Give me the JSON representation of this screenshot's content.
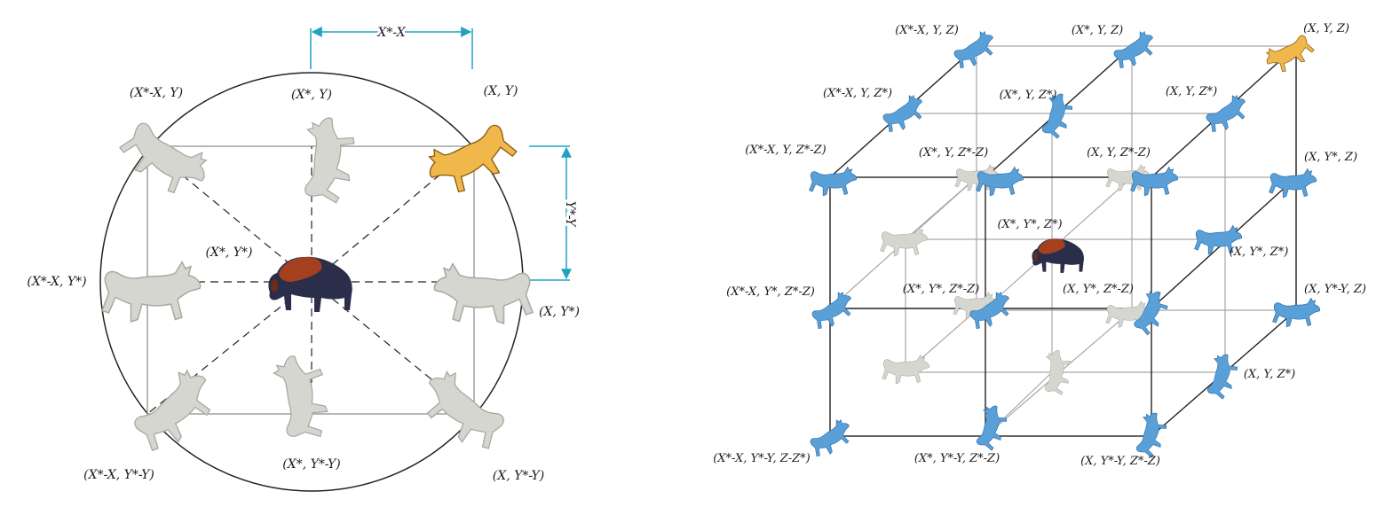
{
  "colors": {
    "wolf_grey": "#d6d6d0",
    "wolf_grey_outline": "#a9a9a2",
    "wolf_blue": "#5aa0d8",
    "wolf_blue_outline": "#2f6fa8",
    "wolf_gold": "#f0b84a",
    "bison_body": "#2a2e4a",
    "bison_hump": "#a5401f",
    "arrow_teal": "#1fa3c0",
    "line_dark": "#222222",
    "line_light": "#a8a8a8"
  },
  "left_panel": {
    "dim_x": "X*-X",
    "dim_y": "Y*-Y",
    "labels": {
      "top_left": "(X*-X, Y)",
      "top_mid": "(X*, Y)",
      "top_right": "(X, Y)",
      "center": "(X*, Y*)",
      "mid_left": "(X*-X, Y*)",
      "mid_right": "(X, Y*)",
      "bottom_left": "(X*-X, Y*-Y)",
      "bottom_mid": "(X*, Y*-Y)",
      "bottom_right": "(X, Y*-Y)"
    }
  },
  "right_panel": {
    "labels": {
      "l1": "(X*-X, Y, Z)",
      "l2": "(X*, Y, Z)",
      "l3": "(X, Y, Z)",
      "l4": "(X*-X, Y, Z*)",
      "l5": "(X*, Y, Z*)",
      "l6": "(X, Y, Z*)",
      "l7": "(X*-X, Y, Z*-Z)",
      "l8": "(X*, Y, Z*-Z)",
      "l9": "(X, Y, Z*-Z)",
      "l10": "(X, Y*, Z)",
      "l11": "(X*, Y*, Z*)",
      "l12": "(X, Y*, Z*)",
      "l13": "(X*-X, Y*, Z*-Z)",
      "l14": "(X*, Y*, Z*-Z)",
      "l15": "(X, Y*, Z*-Z)",
      "l16": "(X, Y*-Y, Z)",
      "l17": "(X, Y, Z*)",
      "l18": "(X*-X, Y*-Y, Z-Z*)",
      "l19": "(X*, Y*-Y, Z*-Z)",
      "l20": "(X, Y*-Y, Z*-Z)"
    }
  }
}
